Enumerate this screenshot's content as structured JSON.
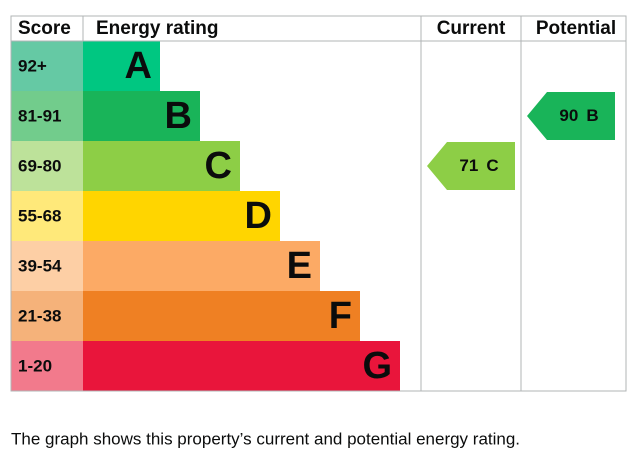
{
  "chart_data": {
    "type": "epc",
    "headers": {
      "score": "Score",
      "rating": "Energy rating",
      "current": "Current",
      "potential": "Potential"
    },
    "bands": [
      {
        "score": "92+",
        "letter": "A",
        "color": "#00c781",
        "score_color": "#65c9a4"
      },
      {
        "score": "81-91",
        "letter": "B",
        "color": "#19b459",
        "score_color": "#72cc8c"
      },
      {
        "score": "69-80",
        "letter": "C",
        "color": "#8dce46",
        "score_color": "#bde29a"
      },
      {
        "score": "55-68",
        "letter": "D",
        "color": "#ffd500",
        "score_color": "#ffe97a"
      },
      {
        "score": "39-54",
        "letter": "E",
        "color": "#fcaa65",
        "score_color": "#fdcfa5"
      },
      {
        "score": "21-38",
        "letter": "F",
        "color": "#ef8023",
        "score_color": "#f5b27a"
      },
      {
        "score": "1-20",
        "letter": "G",
        "color": "#e9153b",
        "score_color": "#f27a8c"
      }
    ],
    "current": {
      "value": 71,
      "rating": "C"
    },
    "potential": {
      "value": 90,
      "rating": "B"
    },
    "caption": "The graph shows this property’s current and potential energy rating."
  }
}
